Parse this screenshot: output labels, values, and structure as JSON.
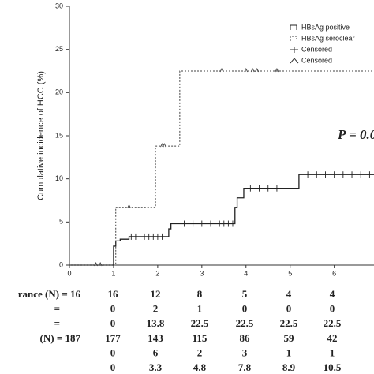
{
  "chart_data": {
    "type": "step",
    "y_label": "Cumulative incidence of HCC (%)",
    "annotation": "P = 0.0",
    "xlim": [
      0,
      6.9
    ],
    "xticks": [
      0,
      1,
      2,
      3,
      4,
      5,
      6
    ],
    "ylim": [
      0,
      30
    ],
    "yticks": [
      0,
      5,
      10,
      15,
      20,
      25,
      30
    ],
    "series": [
      {
        "name": "HBsAg positive",
        "color": "#222222",
        "dash": false,
        "x": [
          0,
          1.0,
          1.05,
          1.15,
          1.35,
          2.25,
          2.3,
          3.75,
          3.8,
          3.95,
          5.2,
          6.9
        ],
        "values": [
          0,
          2.2,
          2.8,
          3.0,
          3.3,
          4.2,
          4.8,
          6.7,
          7.8,
          8.9,
          10.5,
          10.5
        ],
        "censored_x": [
          1.4,
          1.5,
          1.6,
          1.7,
          1.8,
          1.9,
          2.0,
          2.1,
          2.6,
          2.8,
          3.0,
          3.2,
          3.4,
          3.5,
          3.6,
          3.7,
          4.1,
          4.3,
          4.5,
          4.7,
          5.4,
          5.6,
          5.8,
          6.0,
          6.2,
          6.4,
          6.6,
          6.8
        ]
      },
      {
        "name": "HBsAg seroclear",
        "color": "#444444",
        "dash": true,
        "x": [
          0,
          1.05,
          1.95,
          2.5,
          6.9
        ],
        "values": [
          0,
          6.7,
          13.8,
          22.5,
          22.5
        ],
        "censored_x": [
          0.6,
          0.7,
          1.35,
          2.1,
          2.15,
          3.45,
          4.0,
          4.15,
          4.25,
          4.7
        ]
      }
    ],
    "censored_legend": [
      "Censored",
      "Censored"
    ],
    "risk_table": {
      "labels": [
        "rance (N) = 16",
        "=",
        "=",
        "(N) = 187",
        null,
        null
      ],
      "rows": [
        [
          "16",
          "12",
          "8",
          "5",
          "4",
          "4"
        ],
        [
          "0",
          "2",
          "1",
          "0",
          "0",
          "0"
        ],
        [
          "0",
          "13.8",
          "22.5",
          "22.5",
          "22.5",
          "22.5"
        ],
        [
          "177",
          "143",
          "115",
          "86",
          "59",
          "42"
        ],
        [
          "0",
          "6",
          "2",
          "3",
          "1",
          "1"
        ],
        [
          "0",
          "3.3",
          "4.8",
          "7.8",
          "8.9",
          "10.5"
        ]
      ]
    }
  }
}
